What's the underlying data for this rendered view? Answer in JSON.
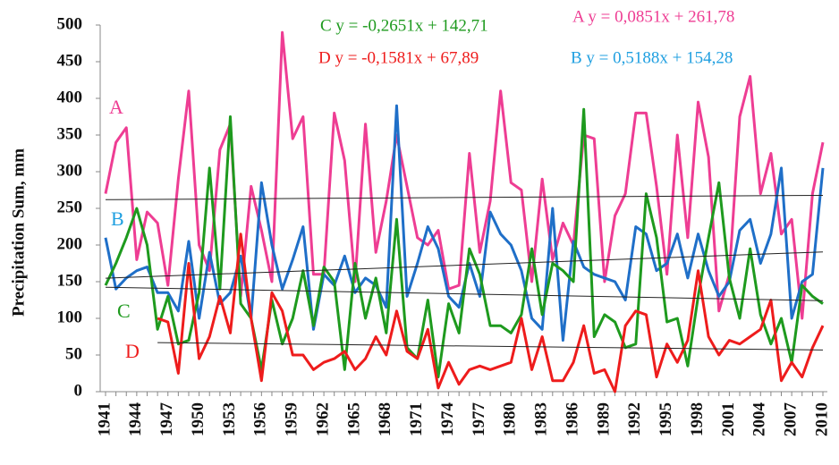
{
  "chart_data": {
    "type": "line",
    "y_label": "Precipitation Sum, mm",
    "categories": [
      "1941",
      null,
      null,
      "1944",
      null,
      null,
      "1947",
      null,
      null,
      "1950",
      null,
      null,
      "1953",
      null,
      null,
      "1956",
      null,
      null,
      "1959",
      null,
      null,
      "1962",
      null,
      null,
      "1965",
      null,
      null,
      "1968",
      null,
      null,
      "1971",
      null,
      null,
      "1974",
      null,
      null,
      "1977",
      null,
      null,
      "1980",
      null,
      null,
      "1983",
      null,
      null,
      "1986",
      null,
      null,
      "1989",
      null,
      null,
      "1992",
      null,
      null,
      "1995",
      null,
      null,
      "1998",
      null,
      null,
      "2001",
      null,
      null,
      "2004",
      null,
      null,
      "2007",
      null,
      null,
      "2010"
    ],
    "ylim": [
      0,
      500
    ],
    "yticks": [
      0,
      50,
      100,
      150,
      200,
      250,
      300,
      350,
      400,
      450,
      500
    ],
    "series": [
      {
        "name": "A",
        "color": "#ee3d93",
        "label_color": "#ee3d93",
        "values": [
          270,
          340,
          360,
          180,
          245,
          230,
          145,
          290,
          410,
          200,
          165,
          330,
          365,
          130,
          280,
          220,
          150,
          490,
          345,
          375,
          160,
          160,
          380,
          315,
          150,
          365,
          190,
          260,
          350,
          280,
          210,
          200,
          220,
          140,
          145,
          325,
          190,
          260,
          410,
          285,
          275,
          150,
          290,
          180,
          230,
          200,
          350,
          345,
          150,
          240,
          270,
          380,
          380,
          280,
          160,
          350,
          210,
          395,
          320,
          110,
          160,
          375,
          430,
          270,
          325,
          215,
          235,
          100,
          270,
          340
        ]
      },
      {
        "name": "B",
        "color": "#1f6fc8",
        "label_color": "#1f9fe0",
        "values": [
          210,
          140,
          155,
          165,
          170,
          135,
          135,
          110,
          205,
          100,
          190,
          120,
          135,
          185,
          100,
          285,
          200,
          140,
          180,
          225,
          85,
          160,
          145,
          185,
          135,
          155,
          145,
          115,
          390,
          130,
          175,
          225,
          195,
          130,
          115,
          175,
          130,
          245,
          215,
          200,
          165,
          100,
          85,
          250,
          70,
          205,
          170,
          160,
          155,
          150,
          125,
          225,
          215,
          165,
          175,
          215,
          155,
          215,
          165,
          130,
          150,
          220,
          235,
          175,
          215,
          305,
          100,
          150,
          160,
          305
        ]
      },
      {
        "name": "C",
        "color": "#1e9a1e",
        "label_color": "#1e9a1e",
        "values": [
          145,
          175,
          210,
          250,
          200,
          85,
          130,
          65,
          70,
          135,
          305,
          140,
          375,
          120,
          100,
          30,
          125,
          65,
          100,
          165,
          90,
          170,
          150,
          30,
          175,
          100,
          155,
          80,
          235,
          60,
          45,
          125,
          20,
          120,
          80,
          195,
          160,
          90,
          90,
          80,
          105,
          195,
          105,
          175,
          165,
          150,
          385,
          75,
          105,
          95,
          60,
          65,
          270,
          210,
          95,
          100,
          35,
          130,
          210,
          285,
          155,
          100,
          195,
          105,
          65,
          100,
          40,
          145,
          130,
          120
        ]
      },
      {
        "name": "D",
        "color": "#ee1c1c",
        "label_color": "#ee1c1c",
        "values": [
          null,
          null,
          null,
          null,
          null,
          100,
          95,
          25,
          175,
          45,
          75,
          130,
          80,
          215,
          100,
          15,
          135,
          110,
          50,
          50,
          30,
          40,
          45,
          55,
          30,
          45,
          75,
          50,
          110,
          55,
          45,
          85,
          5,
          40,
          10,
          30,
          35,
          30,
          35,
          40,
          100,
          30,
          75,
          15,
          15,
          40,
          90,
          25,
          30,
          0,
          90,
          110,
          105,
          20,
          65,
          40,
          70,
          165,
          75,
          50,
          70,
          65,
          75,
          85,
          125,
          15,
          40,
          20,
          60,
          90
        ]
      }
    ],
    "trendlines": [
      {
        "label": "A  y = 0,0851x + 261,78",
        "slope": 0.0851,
        "intercept": 261.78
      },
      {
        "label": "B  y = 0,5188x + 154,28",
        "slope": 0.5188,
        "intercept": 154.28
      },
      {
        "label": "C  y = -0,2651x + 142,71",
        "slope": -0.2651,
        "intercept": 142.71
      },
      {
        "label": "D  y = -0,1581x + 67,89",
        "slope": -0.1581,
        "intercept": 67.89
      }
    ]
  }
}
